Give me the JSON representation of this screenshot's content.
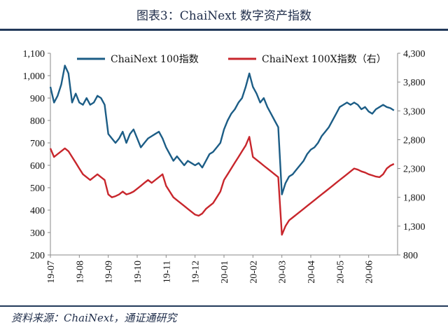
{
  "header": {
    "title": "图表3：ChaiNext 数字资产指数"
  },
  "footer": {
    "source": "资料来源：ChaiNext，通证通研究"
  },
  "colors": {
    "series_left": "#1c5d86",
    "series_right": "#c8262c",
    "rule": "#22395a"
  },
  "chart_data": {
    "type": "line",
    "x": [
      "19-07",
      "19-08",
      "19-09",
      "19-10",
      "19-11",
      "19-12",
      "20-01",
      "20-02",
      "20-03",
      "20-04",
      "20-05",
      "20-06"
    ],
    "x_tick_labels": [
      "19-07",
      "19-08",
      "19-09",
      "19-10",
      "19-11",
      "19-12",
      "20-01",
      "20-02",
      "20-03",
      "20-04",
      "20-05",
      "20-06"
    ],
    "y_left": {
      "min": 200,
      "max": 1100,
      "ticks": [
        200,
        300,
        400,
        500,
        600,
        700,
        800,
        900,
        1000,
        1100
      ],
      "tick_labels": [
        "200",
        "300",
        "400",
        "500",
        "600",
        "700",
        "800",
        "900",
        "1,000",
        "1,100"
      ]
    },
    "y_right": {
      "min": 800,
      "max": 4300,
      "ticks": [
        800,
        1300,
        1800,
        2300,
        2800,
        3300,
        3800,
        4300
      ],
      "tick_labels": [
        "800",
        "1,300",
        "1,800",
        "2,300",
        "2,800",
        "3,300",
        "3,800",
        "4,300"
      ]
    },
    "grid": false,
    "legend_position": "top",
    "series": [
      {
        "name": "ChaiNext 100指数",
        "axis": "left",
        "points": [
          [
            "19-07",
            950
          ],
          [
            "19-07",
            880
          ],
          [
            "19-07",
            910
          ],
          [
            "19-07",
            960
          ],
          [
            "19-07",
            1045
          ],
          [
            "19-07",
            1010
          ],
          [
            "19-07",
            880
          ],
          [
            "19-07",
            920
          ],
          [
            "19-08",
            880
          ],
          [
            "19-08",
            870
          ],
          [
            "19-08",
            900
          ],
          [
            "19-08",
            870
          ],
          [
            "19-08",
            880
          ],
          [
            "19-08",
            910
          ],
          [
            "19-08",
            900
          ],
          [
            "19-08",
            870
          ],
          [
            "19-09",
            740
          ],
          [
            "19-09",
            720
          ],
          [
            "19-09",
            700
          ],
          [
            "19-09",
            720
          ],
          [
            "19-09",
            750
          ],
          [
            "19-09",
            700
          ],
          [
            "19-09",
            740
          ],
          [
            "19-09",
            760
          ],
          [
            "19-10",
            720
          ],
          [
            "19-10",
            680
          ],
          [
            "19-10",
            700
          ],
          [
            "19-10",
            720
          ],
          [
            "19-10",
            730
          ],
          [
            "19-10",
            740
          ],
          [
            "19-10",
            750
          ],
          [
            "19-10",
            720
          ],
          [
            "19-11",
            680
          ],
          [
            "19-11",
            650
          ],
          [
            "19-11",
            620
          ],
          [
            "19-11",
            640
          ],
          [
            "19-11",
            620
          ],
          [
            "19-11",
            600
          ],
          [
            "19-11",
            620
          ],
          [
            "19-11",
            610
          ],
          [
            "19-12",
            600
          ],
          [
            "19-12",
            610
          ],
          [
            "19-12",
            590
          ],
          [
            "19-12",
            620
          ],
          [
            "19-12",
            650
          ],
          [
            "19-12",
            660
          ],
          [
            "19-12",
            680
          ],
          [
            "19-12",
            700
          ],
          [
            "20-01",
            760
          ],
          [
            "20-01",
            800
          ],
          [
            "20-01",
            830
          ],
          [
            "20-01",
            850
          ],
          [
            "20-01",
            880
          ],
          [
            "20-01",
            900
          ],
          [
            "20-01",
            950
          ],
          [
            "20-01",
            1010
          ],
          [
            "20-02",
            950
          ],
          [
            "20-02",
            920
          ],
          [
            "20-02",
            880
          ],
          [
            "20-02",
            900
          ],
          [
            "20-02",
            860
          ],
          [
            "20-02",
            830
          ],
          [
            "20-02",
            800
          ],
          [
            "20-02",
            770
          ],
          [
            "20-03",
            470
          ],
          [
            "20-03",
            520
          ],
          [
            "20-03",
            550
          ],
          [
            "20-03",
            560
          ],
          [
            "20-03",
            580
          ],
          [
            "20-03",
            600
          ],
          [
            "20-03",
            620
          ],
          [
            "20-03",
            650
          ],
          [
            "20-04",
            670
          ],
          [
            "20-04",
            680
          ],
          [
            "20-04",
            700
          ],
          [
            "20-04",
            730
          ],
          [
            "20-04",
            750
          ],
          [
            "20-04",
            770
          ],
          [
            "20-04",
            800
          ],
          [
            "20-04",
            830
          ],
          [
            "20-05",
            860
          ],
          [
            "20-05",
            870
          ],
          [
            "20-05",
            880
          ],
          [
            "20-05",
            870
          ],
          [
            "20-05",
            880
          ],
          [
            "20-05",
            870
          ],
          [
            "20-05",
            850
          ],
          [
            "20-05",
            860
          ],
          [
            "20-06",
            840
          ],
          [
            "20-06",
            830
          ],
          [
            "20-06",
            850
          ],
          [
            "20-06",
            860
          ],
          [
            "20-06",
            870
          ],
          [
            "20-06",
            860
          ],
          [
            "20-06",
            855
          ],
          [
            "20-06",
            845
          ]
        ]
      },
      {
        "name": "ChaiNext 100X指数（右）",
        "axis": "right",
        "points": [
          [
            "19-07",
            2650
          ],
          [
            "19-07",
            2500
          ],
          [
            "19-07",
            2550
          ],
          [
            "19-07",
            2600
          ],
          [
            "19-07",
            2650
          ],
          [
            "19-07",
            2600
          ],
          [
            "19-07",
            2500
          ],
          [
            "19-07",
            2400
          ],
          [
            "19-08",
            2300
          ],
          [
            "19-08",
            2200
          ],
          [
            "19-08",
            2150
          ],
          [
            "19-08",
            2100
          ],
          [
            "19-08",
            2150
          ],
          [
            "19-08",
            2200
          ],
          [
            "19-08",
            2150
          ],
          [
            "19-08",
            2100
          ],
          [
            "19-09",
            1850
          ],
          [
            "19-09",
            1800
          ],
          [
            "19-09",
            1820
          ],
          [
            "19-09",
            1850
          ],
          [
            "19-09",
            1900
          ],
          [
            "19-09",
            1850
          ],
          [
            "19-09",
            1870
          ],
          [
            "19-09",
            1900
          ],
          [
            "19-10",
            1950
          ],
          [
            "19-10",
            2000
          ],
          [
            "19-10",
            2050
          ],
          [
            "19-10",
            2100
          ],
          [
            "19-10",
            2050
          ],
          [
            "19-10",
            2100
          ],
          [
            "19-10",
            2150
          ],
          [
            "19-10",
            2200
          ],
          [
            "19-11",
            2000
          ],
          [
            "19-11",
            1900
          ],
          [
            "19-11",
            1800
          ],
          [
            "19-11",
            1750
          ],
          [
            "19-11",
            1700
          ],
          [
            "19-11",
            1650
          ],
          [
            "19-11",
            1600
          ],
          [
            "19-11",
            1550
          ],
          [
            "19-12",
            1500
          ],
          [
            "19-12",
            1480
          ],
          [
            "19-12",
            1520
          ],
          [
            "19-12",
            1600
          ],
          [
            "19-12",
            1650
          ],
          [
            "19-12",
            1700
          ],
          [
            "19-12",
            1800
          ],
          [
            "19-12",
            1900
          ],
          [
            "20-01",
            2100
          ],
          [
            "20-01",
            2200
          ],
          [
            "20-01",
            2300
          ],
          [
            "20-01",
            2400
          ],
          [
            "20-01",
            2500
          ],
          [
            "20-01",
            2600
          ],
          [
            "20-01",
            2700
          ],
          [
            "20-01",
            2850
          ],
          [
            "20-02",
            2500
          ],
          [
            "20-02",
            2450
          ],
          [
            "20-02",
            2400
          ],
          [
            "20-02",
            2350
          ],
          [
            "20-02",
            2300
          ],
          [
            "20-02",
            2250
          ],
          [
            "20-02",
            2200
          ],
          [
            "20-02",
            2150
          ],
          [
            "20-03",
            1150
          ],
          [
            "20-03",
            1300
          ],
          [
            "20-03",
            1400
          ],
          [
            "20-03",
            1450
          ],
          [
            "20-03",
            1500
          ],
          [
            "20-03",
            1550
          ],
          [
            "20-03",
            1600
          ],
          [
            "20-03",
            1650
          ],
          [
            "20-04",
            1700
          ],
          [
            "20-04",
            1750
          ],
          [
            "20-04",
            1800
          ],
          [
            "20-04",
            1850
          ],
          [
            "20-04",
            1900
          ],
          [
            "20-04",
            1950
          ],
          [
            "20-04",
            2000
          ],
          [
            "20-04",
            2050
          ],
          [
            "20-05",
            2100
          ],
          [
            "20-05",
            2150
          ],
          [
            "20-05",
            2200
          ],
          [
            "20-05",
            2250
          ],
          [
            "20-05",
            2300
          ],
          [
            "20-05",
            2280
          ],
          [
            "20-05",
            2250
          ],
          [
            "20-05",
            2230
          ],
          [
            "20-06",
            2200
          ],
          [
            "20-06",
            2180
          ],
          [
            "20-06",
            2160
          ],
          [
            "20-06",
            2150
          ],
          [
            "20-06",
            2200
          ],
          [
            "20-06",
            2300
          ],
          [
            "20-06",
            2350
          ],
          [
            "20-06",
            2380
          ]
        ]
      }
    ]
  }
}
